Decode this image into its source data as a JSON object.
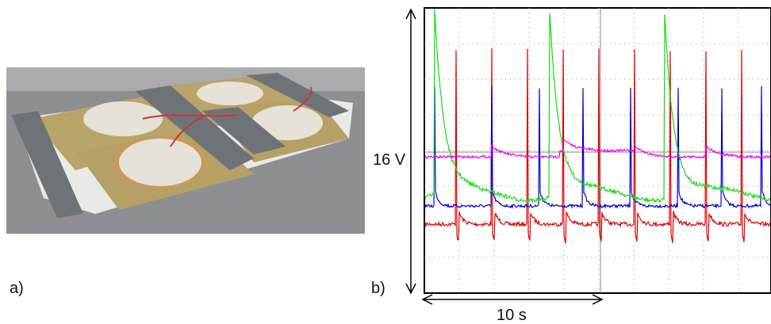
{
  "panel_a": {
    "label": "a)"
  },
  "panel_b": {
    "label": "b)",
    "voltage_scale": "16 V",
    "time_scale": "10 s"
  }
}
